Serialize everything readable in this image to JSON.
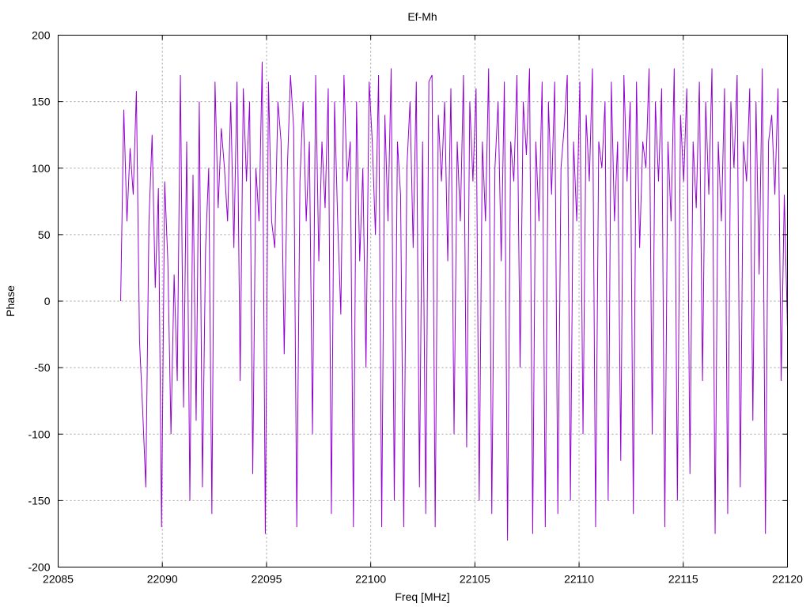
{
  "chart_data": {
    "type": "line",
    "title": "Ef-Mh",
    "xlabel": "Freq [MHz]",
    "ylabel": "Phase",
    "xlim": [
      22085,
      22120
    ],
    "ylim": [
      -200,
      200
    ],
    "xticks": [
      22085,
      22090,
      22095,
      22100,
      22105,
      22110,
      22115,
      22120
    ],
    "yticks": [
      -200,
      -150,
      -100,
      -50,
      0,
      50,
      100,
      150,
      200
    ],
    "grid": true,
    "legend": "none",
    "series": [
      {
        "color": "#9400d3",
        "x_start": 22088.0,
        "x_end": 22120.0,
        "values": [
          0,
          144,
          60,
          115,
          80,
          158,
          -30,
          -82,
          -140,
          60,
          125,
          10,
          85,
          -170,
          90,
          30,
          -100,
          20,
          -60,
          170,
          -80,
          120,
          -150,
          95,
          -90,
          150,
          -140,
          40,
          100,
          -160,
          165,
          70,
          130,
          100,
          60,
          150,
          40,
          165,
          -60,
          160,
          90,
          150,
          -130,
          100,
          60,
          180,
          -175,
          165,
          60,
          40,
          150,
          120,
          -40,
          100,
          170,
          130,
          -170,
          90,
          150,
          60,
          120,
          -100,
          170,
          30,
          120,
          70,
          160,
          -160,
          150,
          60,
          -10,
          170,
          90,
          120,
          -170,
          150,
          30,
          100,
          -50,
          165,
          120,
          50,
          170,
          -170,
          140,
          60,
          175,
          -150,
          120,
          80,
          -170,
          100,
          150,
          40,
          165,
          -140,
          120,
          -160,
          165,
          170,
          -170,
          140,
          90,
          150,
          30,
          160,
          -100,
          120,
          60,
          170,
          -110,
          150,
          90,
          160,
          -150,
          120,
          60,
          175,
          -160,
          100,
          150,
          30,
          165,
          -180,
          120,
          90,
          170,
          -50,
          150,
          110,
          175,
          -175,
          120,
          60,
          165,
          -170,
          150,
          80,
          165,
          -160,
          100,
          130,
          170,
          -150,
          120,
          60,
          165,
          -100,
          140,
          90,
          175,
          -170,
          120,
          100,
          150,
          -150,
          165,
          60,
          120,
          -120,
          170,
          90,
          150,
          -160,
          165,
          40,
          120,
          100,
          175,
          -100,
          150,
          90,
          160,
          -170,
          120,
          60,
          175,
          -150,
          140,
          90,
          160,
          -130,
          120,
          70,
          165,
          -60,
          150,
          80,
          175,
          -175,
          120,
          60,
          160,
          -160,
          150,
          100,
          170,
          -140,
          120,
          90,
          160,
          -90,
          150,
          20,
          175,
          -175,
          120,
          140,
          80,
          160,
          -60,
          80,
          -20
        ]
      }
    ]
  }
}
